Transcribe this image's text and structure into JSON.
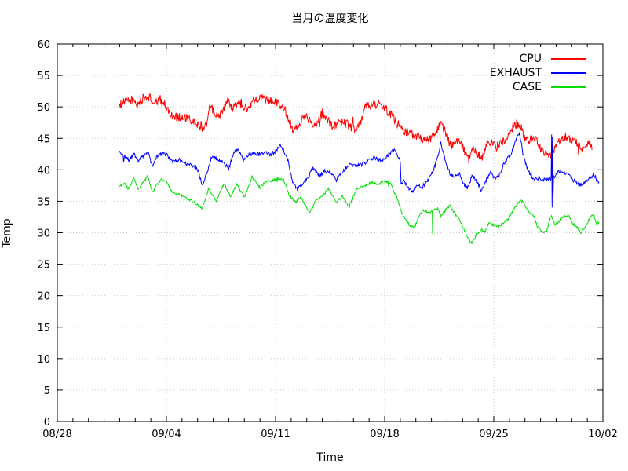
{
  "chart_data": {
    "type": "line",
    "title": "当月の温度変化",
    "xlabel": "Time",
    "ylabel": "Temp",
    "ylim": [
      0,
      60
    ],
    "y_ticks": [
      0,
      5,
      10,
      15,
      20,
      25,
      30,
      35,
      40,
      45,
      50,
      55,
      60
    ],
    "x_range_days": 35,
    "x_ticks": [
      {
        "day": 0,
        "label": "08/28"
      },
      {
        "day": 7,
        "label": "09/04"
      },
      {
        "day": 14,
        "label": "09/11"
      },
      {
        "day": 21,
        "label": "09/18"
      },
      {
        "day": 28,
        "label": "09/25"
      },
      {
        "day": 35,
        "label": "10/02"
      }
    ],
    "x_minor_tick_every_days": 1,
    "grid": true,
    "grid_color": "#c8c8c8",
    "legend_position": "top-right-inside",
    "series": [
      {
        "name": "CPU",
        "color": "#ff0000",
        "noise_amplitude": 0.7,
        "points": [
          [
            4.0,
            50.4
          ],
          [
            4.4,
            50.8
          ],
          [
            4.8,
            51.2
          ],
          [
            5.1,
            50.3
          ],
          [
            5.5,
            51.3
          ],
          [
            5.9,
            51.6
          ],
          [
            6.2,
            50.4
          ],
          [
            6.6,
            51.2
          ],
          [
            7.0,
            50.0
          ],
          [
            7.3,
            48.6
          ],
          [
            7.8,
            48.4
          ],
          [
            8.3,
            48.1
          ],
          [
            8.9,
            47.4
          ],
          [
            9.3,
            46.6
          ],
          [
            9.6,
            47.5
          ],
          [
            9.8,
            50.2
          ],
          [
            10.1,
            49.0
          ],
          [
            10.4,
            48.8
          ],
          [
            10.7,
            49.6
          ],
          [
            10.9,
            51.2
          ],
          [
            11.2,
            49.8
          ],
          [
            11.5,
            50.2
          ],
          [
            11.8,
            50.6
          ],
          [
            12.2,
            49.6
          ],
          [
            12.6,
            51.2
          ],
          [
            13.0,
            51.6
          ],
          [
            13.4,
            51.0
          ],
          [
            13.8,
            51.2
          ],
          [
            14.2,
            50.6
          ],
          [
            14.6,
            49.6
          ],
          [
            15.1,
            46.5
          ],
          [
            15.5,
            47.2
          ],
          [
            15.9,
            48.6
          ],
          [
            16.3,
            47.6
          ],
          [
            16.6,
            47.2
          ],
          [
            17.0,
            49.0
          ],
          [
            17.3,
            48.2
          ],
          [
            17.7,
            46.8
          ],
          [
            18.2,
            47.8
          ],
          [
            18.6,
            47.3
          ],
          [
            19.0,
            46.5
          ],
          [
            19.4,
            47.0
          ],
          [
            19.8,
            50.2
          ],
          [
            20.3,
            50.5
          ],
          [
            20.9,
            50.2
          ],
          [
            21.3,
            49.0
          ],
          [
            21.7,
            47.8
          ],
          [
            22.1,
            46.4
          ],
          [
            22.5,
            45.9
          ],
          [
            22.9,
            45.5
          ],
          [
            23.3,
            45.1
          ],
          [
            23.8,
            44.6
          ],
          [
            24.2,
            45.8
          ],
          [
            24.6,
            47.5
          ],
          [
            24.9,
            46.0
          ],
          [
            25.2,
            43.9
          ],
          [
            25.5,
            44.3
          ],
          [
            25.8,
            44.7
          ],
          [
            26.1,
            43.0
          ],
          [
            26.4,
            41.4
          ],
          [
            26.7,
            43.3
          ],
          [
            27.0,
            42.4
          ],
          [
            27.3,
            42.0
          ],
          [
            27.6,
            44.6
          ],
          [
            27.9,
            44.2
          ],
          [
            28.2,
            43.6
          ],
          [
            28.6,
            44.5
          ],
          [
            29.0,
            46.0
          ],
          [
            29.4,
            47.2
          ],
          [
            29.7,
            47.2
          ],
          [
            30.0,
            44.8
          ],
          [
            30.4,
            44.8
          ],
          [
            30.7,
            45.0
          ],
          [
            31.0,
            43.3
          ],
          [
            31.3,
            42.4
          ],
          [
            31.7,
            42.5
          ],
          [
            32.0,
            43.8
          ],
          [
            32.4,
            45.1
          ],
          [
            32.7,
            45.3
          ],
          [
            33.1,
            44.6
          ],
          [
            33.4,
            44.2
          ],
          [
            33.7,
            43.0
          ],
          [
            33.9,
            43.8
          ],
          [
            34.1,
            44.3
          ],
          [
            34.3,
            43.5
          ]
        ]
      },
      {
        "name": "EXHAUST",
        "color": "#0000ff",
        "noise_amplitude": 0.3,
        "points": [
          [
            4.0,
            43.0
          ],
          [
            4.15,
            42.2
          ],
          [
            4.4,
            42.0
          ],
          [
            4.6,
            41.3
          ],
          [
            4.9,
            42.6
          ],
          [
            5.2,
            41.4
          ],
          [
            5.5,
            42.2
          ],
          [
            5.8,
            42.9
          ],
          [
            6.1,
            40.5
          ],
          [
            6.4,
            42.2
          ],
          [
            6.8,
            42.6
          ],
          [
            7.0,
            42.4
          ],
          [
            7.4,
            41.2
          ],
          [
            7.8,
            41.6
          ],
          [
            8.3,
            41.0
          ],
          [
            8.7,
            40.6
          ],
          [
            9.0,
            40.0
          ],
          [
            9.3,
            37.6
          ],
          [
            9.6,
            39.5
          ],
          [
            9.9,
            42.0
          ],
          [
            10.3,
            41.7
          ],
          [
            10.6,
            41.4
          ],
          [
            11.0,
            40.2
          ],
          [
            11.3,
            42.6
          ],
          [
            11.6,
            43.4
          ],
          [
            11.9,
            41.5
          ],
          [
            12.2,
            42.2
          ],
          [
            12.5,
            42.6
          ],
          [
            12.9,
            42.4
          ],
          [
            13.3,
            42.8
          ],
          [
            13.7,
            42.4
          ],
          [
            14.0,
            43.0
          ],
          [
            14.3,
            43.9
          ],
          [
            14.55,
            42.9
          ],
          [
            14.8,
            41.5
          ],
          [
            15.1,
            38.0
          ],
          [
            15.4,
            36.9
          ],
          [
            15.8,
            37.8
          ],
          [
            16.1,
            38.7
          ],
          [
            16.4,
            40.4
          ],
          [
            16.8,
            39.0
          ],
          [
            17.2,
            39.9
          ],
          [
            17.6,
            39.5
          ],
          [
            17.9,
            38.4
          ],
          [
            18.3,
            39.6
          ],
          [
            18.7,
            40.9
          ],
          [
            19.1,
            40.6
          ],
          [
            19.5,
            40.8
          ],
          [
            19.9,
            41.4
          ],
          [
            20.3,
            41.9
          ],
          [
            20.7,
            41.5
          ],
          [
            21.1,
            42.0
          ],
          [
            21.4,
            42.8
          ],
          [
            21.65,
            43.3
          ],
          [
            21.9,
            41.8
          ],
          [
            22.0,
            41.4
          ],
          [
            22.05,
            37.8
          ],
          [
            22.2,
            38.3
          ],
          [
            22.5,
            37.2
          ],
          [
            22.8,
            36.6
          ],
          [
            23.1,
            37.6
          ],
          [
            23.4,
            37.2
          ],
          [
            23.8,
            38.4
          ],
          [
            24.1,
            39.8
          ],
          [
            24.4,
            42.0
          ],
          [
            24.6,
            44.2
          ],
          [
            24.9,
            41.4
          ],
          [
            25.2,
            39.4
          ],
          [
            25.5,
            38.8
          ],
          [
            25.8,
            39.5
          ],
          [
            26.1,
            37.6
          ],
          [
            26.3,
            37.0
          ],
          [
            26.6,
            39.0
          ],
          [
            26.9,
            38.5
          ],
          [
            27.2,
            36.5
          ],
          [
            27.5,
            38.2
          ],
          [
            27.8,
            39.7
          ],
          [
            28.0,
            38.7
          ],
          [
            28.3,
            38.9
          ],
          [
            28.7,
            41.2
          ],
          [
            29.1,
            42.6
          ],
          [
            29.4,
            44.6
          ],
          [
            29.65,
            45.8
          ],
          [
            29.9,
            42.2
          ],
          [
            30.1,
            40.6
          ],
          [
            30.4,
            38.8
          ],
          [
            30.6,
            38.5
          ],
          [
            30.9,
            38.7
          ],
          [
            31.2,
            38.4
          ],
          [
            31.5,
            38.6
          ],
          [
            31.68,
            38.6
          ],
          [
            31.71,
            45.6
          ],
          [
            31.74,
            34.0
          ],
          [
            31.77,
            45.2
          ],
          [
            31.8,
            35.6
          ],
          [
            31.83,
            38.8
          ],
          [
            32.1,
            39.7
          ],
          [
            32.4,
            39.9
          ],
          [
            32.7,
            39.3
          ],
          [
            33.0,
            38.6
          ],
          [
            33.3,
            38.0
          ],
          [
            33.6,
            37.4
          ],
          [
            33.9,
            38.2
          ],
          [
            34.2,
            38.8
          ],
          [
            34.45,
            39.2
          ],
          [
            34.6,
            38.3
          ],
          [
            34.75,
            38.0
          ]
        ]
      },
      {
        "name": "CASE",
        "color": "#00dd00",
        "noise_amplitude": 0.2,
        "points": [
          [
            4.0,
            37.3
          ],
          [
            4.3,
            37.8
          ],
          [
            4.6,
            36.9
          ],
          [
            4.9,
            38.8
          ],
          [
            5.2,
            36.8
          ],
          [
            5.5,
            38.0
          ],
          [
            5.8,
            39.0
          ],
          [
            6.1,
            36.5
          ],
          [
            6.4,
            37.6
          ],
          [
            6.7,
            38.5
          ],
          [
            7.0,
            38.3
          ],
          [
            7.3,
            36.6
          ],
          [
            7.7,
            36.2
          ],
          [
            8.1,
            35.8
          ],
          [
            8.5,
            35.2
          ],
          [
            8.9,
            34.6
          ],
          [
            9.3,
            33.8
          ],
          [
            9.7,
            37.0
          ],
          [
            10.2,
            34.9
          ],
          [
            10.7,
            37.9
          ],
          [
            11.1,
            35.7
          ],
          [
            11.5,
            37.7
          ],
          [
            12.0,
            35.7
          ],
          [
            12.5,
            38.9
          ],
          [
            13.0,
            37.2
          ],
          [
            13.4,
            38.1
          ],
          [
            13.8,
            38.3
          ],
          [
            14.2,
            38.7
          ],
          [
            14.5,
            38.4
          ],
          [
            14.9,
            35.9
          ],
          [
            15.3,
            34.9
          ],
          [
            15.6,
            35.6
          ],
          [
            16.2,
            33.1
          ],
          [
            16.6,
            35.3
          ],
          [
            17.0,
            35.8
          ],
          [
            17.4,
            37.0
          ],
          [
            17.9,
            34.9
          ],
          [
            18.3,
            35.8
          ],
          [
            18.7,
            34.0
          ],
          [
            19.2,
            36.9
          ],
          [
            19.7,
            37.5
          ],
          [
            20.2,
            38.0
          ],
          [
            20.6,
            37.7
          ],
          [
            21.0,
            38.2
          ],
          [
            21.4,
            37.7
          ],
          [
            21.8,
            35.5
          ],
          [
            22.2,
            32.5
          ],
          [
            22.6,
            31.2
          ],
          [
            22.9,
            30.8
          ],
          [
            23.2,
            32.6
          ],
          [
            23.5,
            33.6
          ],
          [
            23.8,
            33.2
          ],
          [
            24.05,
            33.4
          ],
          [
            24.07,
            29.8
          ],
          [
            24.1,
            33.5
          ],
          [
            24.4,
            33.9
          ],
          [
            24.6,
            32.6
          ],
          [
            24.9,
            33.6
          ],
          [
            25.2,
            34.4
          ],
          [
            25.5,
            33.1
          ],
          [
            25.8,
            32.1
          ],
          [
            26.1,
            30.4
          ],
          [
            26.4,
            28.9
          ],
          [
            26.6,
            28.4
          ],
          [
            26.9,
            29.6
          ],
          [
            27.2,
            30.6
          ],
          [
            27.4,
            29.9
          ],
          [
            27.7,
            31.6
          ],
          [
            28.0,
            31.2
          ],
          [
            28.3,
            30.9
          ],
          [
            28.6,
            31.6
          ],
          [
            28.9,
            32.1
          ],
          [
            29.2,
            33.4
          ],
          [
            29.5,
            34.6
          ],
          [
            29.7,
            35.3
          ],
          [
            29.9,
            34.7
          ],
          [
            30.2,
            33.4
          ],
          [
            30.5,
            32.9
          ],
          [
            30.8,
            31.0
          ],
          [
            31.1,
            30.1
          ],
          [
            31.4,
            30.4
          ],
          [
            31.7,
            32.8
          ],
          [
            31.9,
            31.3
          ],
          [
            32.2,
            31.9
          ],
          [
            32.5,
            32.6
          ],
          [
            32.8,
            32.8
          ],
          [
            33.1,
            31.4
          ],
          [
            33.4,
            30.7
          ],
          [
            33.6,
            29.9
          ],
          [
            33.9,
            31.1
          ],
          [
            34.2,
            32.5
          ],
          [
            34.4,
            32.8
          ],
          [
            34.6,
            31.4
          ],
          [
            34.75,
            31.6
          ]
        ]
      }
    ]
  }
}
